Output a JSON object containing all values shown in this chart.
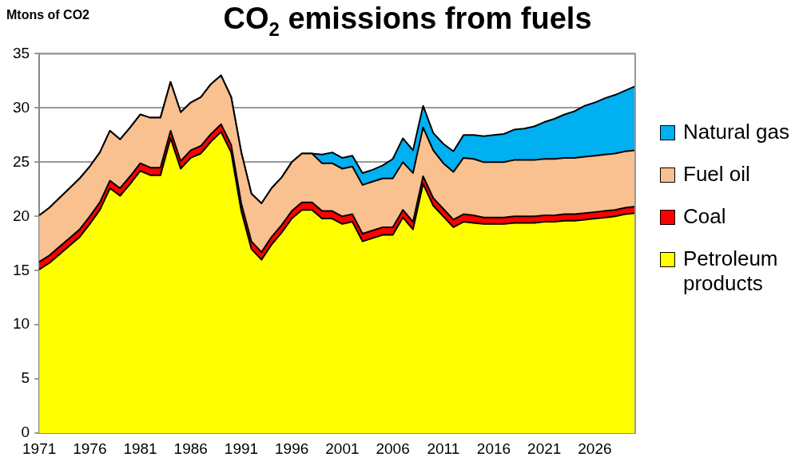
{
  "chart_data": {
    "type": "area",
    "title": "CO$_{2}$ emissions from fuels",
    "ylabel": "Mtons of CO2",
    "categories": [
      "1971",
      null,
      null,
      null,
      null,
      "1976",
      null,
      null,
      null,
      null,
      "1981",
      null,
      null,
      null,
      null,
      "1986",
      null,
      null,
      null,
      null,
      "1991",
      null,
      null,
      null,
      null,
      "1996",
      null,
      null,
      null,
      null,
      "2001",
      null,
      null,
      null,
      null,
      "2006",
      null,
      null,
      null,
      null,
      "2011",
      null,
      null,
      null,
      null,
      "2016",
      null,
      null,
      null,
      null,
      "2021",
      null,
      null,
      null,
      null,
      "2026",
      null,
      null,
      null,
      null
    ],
    "stacked": true,
    "ylim": [
      0,
      35
    ],
    "yticks": [
      0,
      5,
      10,
      15,
      20,
      25,
      30,
      35
    ],
    "grid": "y",
    "legend": "right",
    "series": [
      {
        "name": "Petroleum products",
        "color": "#ffff00",
        "values": [
          15.1,
          15.7,
          16.5,
          17.3,
          18.1,
          19.3,
          20.6,
          22.6,
          21.9,
          23.0,
          24.2,
          23.8,
          23.8,
          27.2,
          24.4,
          25.4,
          25.8,
          26.9,
          27.8,
          25.9,
          20.5,
          17.0,
          16.0,
          17.4,
          18.5,
          19.8,
          20.6,
          20.6,
          19.8,
          19.8,
          19.3,
          19.5,
          17.7,
          18.0,
          18.3,
          18.3,
          19.9,
          18.8,
          23.0,
          21.0,
          20.0,
          19.0,
          19.5,
          19.4,
          19.3,
          19.3,
          19.3,
          19.4,
          19.4,
          19.4,
          19.5,
          19.5,
          19.6,
          19.6,
          19.7,
          19.8,
          19.9,
          20.0,
          20.2,
          20.3
        ]
      },
      {
        "name": "Coal",
        "color": "#ff0000",
        "values": [
          0.7,
          0.7,
          0.7,
          0.7,
          0.7,
          0.7,
          0.7,
          0.7,
          0.7,
          0.7,
          0.7,
          0.7,
          0.7,
          0.7,
          0.7,
          0.7,
          0.7,
          0.7,
          0.7,
          0.7,
          0.7,
          0.7,
          0.7,
          0.7,
          0.7,
          0.7,
          0.7,
          0.7,
          0.7,
          0.7,
          0.7,
          0.7,
          0.7,
          0.7,
          0.7,
          0.7,
          0.7,
          0.7,
          0.7,
          0.7,
          0.7,
          0.7,
          0.7,
          0.7,
          0.6,
          0.6,
          0.6,
          0.6,
          0.6,
          0.6,
          0.6,
          0.6,
          0.6,
          0.6,
          0.6,
          0.6,
          0.6,
          0.6,
          0.6,
          0.6
        ]
      },
      {
        "name": "Fuel oil",
        "color": "#f9c090",
        "values": [
          4.3,
          4.4,
          4.5,
          4.6,
          4.7,
          4.6,
          4.6,
          4.6,
          4.5,
          4.5,
          4.5,
          4.6,
          4.6,
          4.5,
          4.5,
          4.4,
          4.5,
          4.6,
          4.5,
          4.4,
          4.7,
          4.4,
          4.5,
          4.5,
          4.4,
          4.5,
          4.5,
          4.5,
          4.4,
          4.4,
          4.4,
          4.4,
          4.5,
          4.5,
          4.5,
          4.5,
          4.4,
          4.5,
          4.5,
          4.4,
          4.2,
          4.4,
          5.2,
          5.2,
          5.1,
          5.1,
          5.1,
          5.2,
          5.2,
          5.2,
          5.2,
          5.2,
          5.2,
          5.2,
          5.2,
          5.2,
          5.2,
          5.2,
          5.2,
          5.2
        ]
      },
      {
        "name": "Natural gas",
        "color": "#00b0f0",
        "values": [
          0,
          0,
          0,
          0,
          0,
          0,
          0,
          0,
          0,
          0,
          0,
          0,
          0,
          0,
          0,
          0,
          0,
          0,
          0,
          0,
          0,
          0,
          0,
          0,
          0,
          0,
          0,
          0,
          0.8,
          1.0,
          1.0,
          1.0,
          1.1,
          1.1,
          1.2,
          1.8,
          2.2,
          2.1,
          2.0,
          1.6,
          1.8,
          1.9,
          2.1,
          2.2,
          2.4,
          2.5,
          2.6,
          2.8,
          2.9,
          3.1,
          3.4,
          3.7,
          4.0,
          4.3,
          4.7,
          4.9,
          5.2,
          5.4,
          5.6,
          5.9
        ]
      }
    ]
  }
}
